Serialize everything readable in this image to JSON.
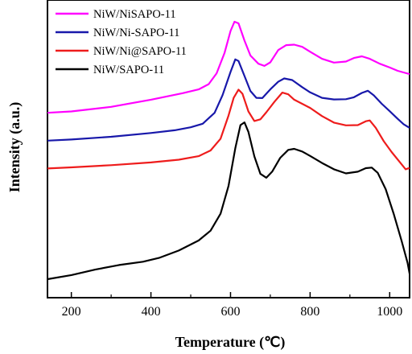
{
  "chart_data": {
    "type": "line",
    "xlabel": "Temperature (℃)",
    "ylabel": "Intensity (a.u.)",
    "xlim": [
      140,
      1050
    ],
    "ylim": [
      0,
      100
    ],
    "x_ticks": [
      200,
      400,
      600,
      800,
      1000
    ],
    "y_ticks_labeled": false,
    "grid": false,
    "legend_position": "top-left",
    "series": [
      {
        "name": "NiW/NiSAPO-11",
        "color": "#ff00ff",
        "points": [
          [
            140,
            61
          ],
          [
            200,
            61.5
          ],
          [
            300,
            63.2
          ],
          [
            400,
            65.8
          ],
          [
            480,
            68.2
          ],
          [
            520,
            69.6
          ],
          [
            545,
            71.5
          ],
          [
            565,
            75.5
          ],
          [
            585,
            83
          ],
          [
            600,
            91
          ],
          [
            610,
            94.4
          ],
          [
            620,
            93.8
          ],
          [
            635,
            87.5
          ],
          [
            650,
            82
          ],
          [
            670,
            79
          ],
          [
            685,
            78.2
          ],
          [
            700,
            79.5
          ],
          [
            720,
            84
          ],
          [
            740,
            85.8
          ],
          [
            760,
            86
          ],
          [
            780,
            85.2
          ],
          [
            800,
            83.4
          ],
          [
            830,
            80.8
          ],
          [
            860,
            79.4
          ],
          [
            890,
            79.8
          ],
          [
            910,
            81.1
          ],
          [
            930,
            81.7
          ],
          [
            950,
            80.8
          ],
          [
            975,
            79
          ],
          [
            1000,
            77.6
          ],
          [
            1020,
            76.4
          ],
          [
            1050,
            75.2
          ]
        ]
      },
      {
        "name": "NiW/Ni-SAPO-11",
        "color": "#1818aa",
        "points": [
          [
            140,
            50.8
          ],
          [
            200,
            51.2
          ],
          [
            300,
            52.2
          ],
          [
            400,
            53.6
          ],
          [
            460,
            54.6
          ],
          [
            500,
            55.7
          ],
          [
            530,
            57
          ],
          [
            560,
            61
          ],
          [
            580,
            67.5
          ],
          [
            600,
            76
          ],
          [
            612,
            80.6
          ],
          [
            620,
            80
          ],
          [
            635,
            74.5
          ],
          [
            650,
            69
          ],
          [
            665,
            66.5
          ],
          [
            680,
            66.4
          ],
          [
            700,
            69.6
          ],
          [
            720,
            72.4
          ],
          [
            735,
            73.6
          ],
          [
            755,
            73
          ],
          [
            780,
            70.4
          ],
          [
            800,
            68.5
          ],
          [
            830,
            66.5
          ],
          [
            860,
            65.9
          ],
          [
            890,
            66
          ],
          [
            910,
            66.7
          ],
          [
            930,
            68.3
          ],
          [
            945,
            69.1
          ],
          [
            960,
            67.4
          ],
          [
            980,
            64.3
          ],
          [
            1000,
            61.6
          ],
          [
            1020,
            58.8
          ],
          [
            1035,
            56.8
          ],
          [
            1050,
            55.5
          ]
        ]
      },
      {
        "name": "NiW/Ni@SAPO-11",
        "color": "#ee1c1c",
        "points": [
          [
            140,
            40.6
          ],
          [
            200,
            41
          ],
          [
            300,
            41.8
          ],
          [
            400,
            42.8
          ],
          [
            470,
            43.8
          ],
          [
            520,
            45.1
          ],
          [
            550,
            47.2
          ],
          [
            575,
            51.5
          ],
          [
            595,
            60
          ],
          [
            608,
            66.5
          ],
          [
            620,
            69.5
          ],
          [
            630,
            68
          ],
          [
            645,
            61.5
          ],
          [
            660,
            58
          ],
          [
            675,
            58.6
          ],
          [
            690,
            61.2
          ],
          [
            710,
            65
          ],
          [
            730,
            68.4
          ],
          [
            745,
            67.8
          ],
          [
            760,
            65.8
          ],
          [
            780,
            64.3
          ],
          [
            800,
            62.8
          ],
          [
            830,
            59.8
          ],
          [
            860,
            57.4
          ],
          [
            890,
            56.4
          ],
          [
            920,
            56.5
          ],
          [
            940,
            57.9
          ],
          [
            950,
            58.2
          ],
          [
            965,
            55.5
          ],
          [
            985,
            50.6
          ],
          [
            1005,
            46.6
          ],
          [
            1025,
            43
          ],
          [
            1040,
            40.3
          ],
          [
            1050,
            40.8
          ]
        ]
      },
      {
        "name": "NiW/SAPO-11",
        "color": "#000000",
        "points": [
          [
            140,
            0
          ],
          [
            200,
            1.5
          ],
          [
            260,
            3.5
          ],
          [
            320,
            5.2
          ],
          [
            380,
            6.4
          ],
          [
            420,
            7.8
          ],
          [
            470,
            10.5
          ],
          [
            520,
            14.2
          ],
          [
            550,
            17.8
          ],
          [
            575,
            24
          ],
          [
            595,
            34.2
          ],
          [
            612,
            48
          ],
          [
            625,
            56.5
          ],
          [
            635,
            57.5
          ],
          [
            645,
            54
          ],
          [
            660,
            45
          ],
          [
            675,
            38.6
          ],
          [
            690,
            37.2
          ],
          [
            705,
            39.5
          ],
          [
            725,
            44.5
          ],
          [
            745,
            47.4
          ],
          [
            760,
            47.8
          ],
          [
            780,
            46.8
          ],
          [
            800,
            45.2
          ],
          [
            830,
            42.6
          ],
          [
            860,
            40.3
          ],
          [
            890,
            38.8
          ],
          [
            920,
            39.4
          ],
          [
            940,
            40.7
          ],
          [
            955,
            40.9
          ],
          [
            970,
            39
          ],
          [
            990,
            33
          ],
          [
            1010,
            24
          ],
          [
            1030,
            14
          ],
          [
            1045,
            6
          ],
          [
            1050,
            2
          ]
        ]
      }
    ]
  }
}
